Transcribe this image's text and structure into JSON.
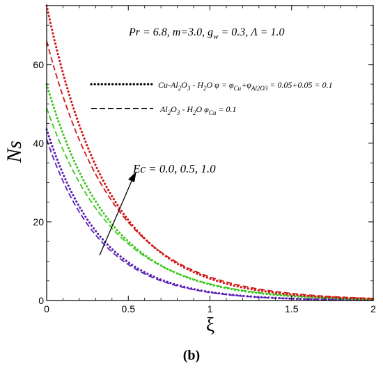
{
  "chart_data": {
    "type": "line",
    "xlabel": "ξ",
    "ylabel": "Ns",
    "xlim": [
      0,
      2
    ],
    "ylim": [
      0,
      75
    ],
    "x_ticks": [
      0,
      0.5,
      1,
      1.5,
      2
    ],
    "x_tick_labels": [
      "0",
      "0.5",
      "1",
      "1.5",
      "2"
    ],
    "y_ticks": [
      0,
      20,
      40,
      60
    ],
    "y_tick_labels": [
      "0",
      "20",
      "40",
      "60"
    ],
    "grid": false,
    "legend_position": "top-right",
    "params_text": "Pr = 6.8, m=3.0, g",
    "params_text_sub": "w",
    "params_text_rest": " = 0.3, Λ = 1.0",
    "legend": [
      {
        "style": "dotted",
        "parts": [
          {
            "t": "Cu-Al"
          },
          {
            "t": "2",
            "sub": true
          },
          {
            "t": "O"
          },
          {
            "t": "3",
            "sub": true
          },
          {
            "t": " - H"
          },
          {
            "t": "2",
            "sub": true
          },
          {
            "t": "O φ = φ"
          },
          {
            "t": "Cu",
            "sub": true
          },
          {
            "t": "+φ"
          },
          {
            "t": "Al2O3",
            "sub": true
          },
          {
            "t": " = 0.05+0.05 = 0.1"
          }
        ]
      },
      {
        "style": "dashed",
        "parts": [
          {
            "t": "Al"
          },
          {
            "t": "2",
            "sub": true
          },
          {
            "t": "O"
          },
          {
            "t": "3",
            "sub": true
          },
          {
            "t": " - H"
          },
          {
            "t": "2",
            "sub": true
          },
          {
            "t": "O φ"
          },
          {
            "t": "Cu",
            "sub": true
          },
          {
            "t": " = 0.1"
          }
        ]
      }
    ],
    "arrow_label": "Ec = 0.0, 0.5, 1.0",
    "caption": "(b)",
    "series": [
      {
        "fluid": "Cu-Al2O3 - H2O",
        "ec": 0.0,
        "style": "dotted",
        "color": "#5b1fb5",
        "y0": 43.5,
        "decay": 3.0
      },
      {
        "fluid": "Al2O3 - H2O",
        "ec": 0.0,
        "style": "dashed",
        "color": "#5b1fb5",
        "y0": 41.0,
        "decay": 3.0
      },
      {
        "fluid": "Cu-Al2O3 - H2O",
        "ec": 0.5,
        "style": "dotted",
        "color": "#3cc81e",
        "y0": 55.0,
        "decay": 2.6
      },
      {
        "fluid": "Al2O3 - H2O",
        "ec": 0.5,
        "style": "dashed",
        "color": "#3cc81e",
        "y0": 49.0,
        "decay": 2.45
      },
      {
        "fluid": "Cu-Al2O3 - H2O",
        "ec": 1.0,
        "style": "dotted",
        "color": "#d41414",
        "y0": 75.0,
        "decay": 2.6
      },
      {
        "fluid": "Al2O3 - H2O",
        "ec": 1.0,
        "style": "dashed",
        "color": "#d41414",
        "y0": 66.0,
        "decay": 2.4
      }
    ]
  }
}
